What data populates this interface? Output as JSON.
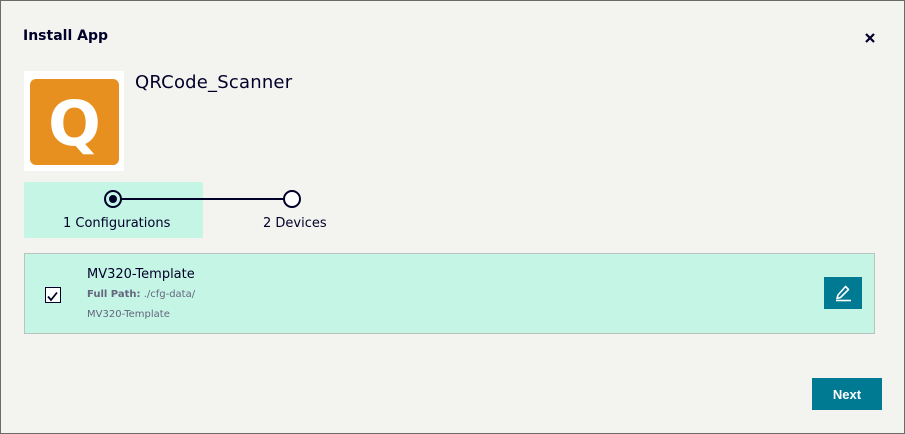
{
  "dialog": {
    "title": "Install App",
    "close_icon": "close-icon"
  },
  "app": {
    "name": "QRCode_Scanner",
    "icon": "qrcode-scanner-app-icon",
    "icon_letter": "Q",
    "icon_color": "#e8901f"
  },
  "stepper": {
    "steps": [
      {
        "label": "1 Configurations",
        "active": true
      },
      {
        "label": "2 Devices",
        "active": false
      }
    ]
  },
  "configurations": [
    {
      "checked": true,
      "name": "MV320-Template",
      "path_label": "Full Path:",
      "path_value": "./cfg-data/",
      "sub": "MV320-Template",
      "edit_icon": "pencil-icon"
    }
  ],
  "footer": {
    "next_label": "Next"
  },
  "colors": {
    "accent": "#007993",
    "highlight": "#c4f5e5",
    "text": "#000028",
    "background": "#f3f3f0"
  }
}
